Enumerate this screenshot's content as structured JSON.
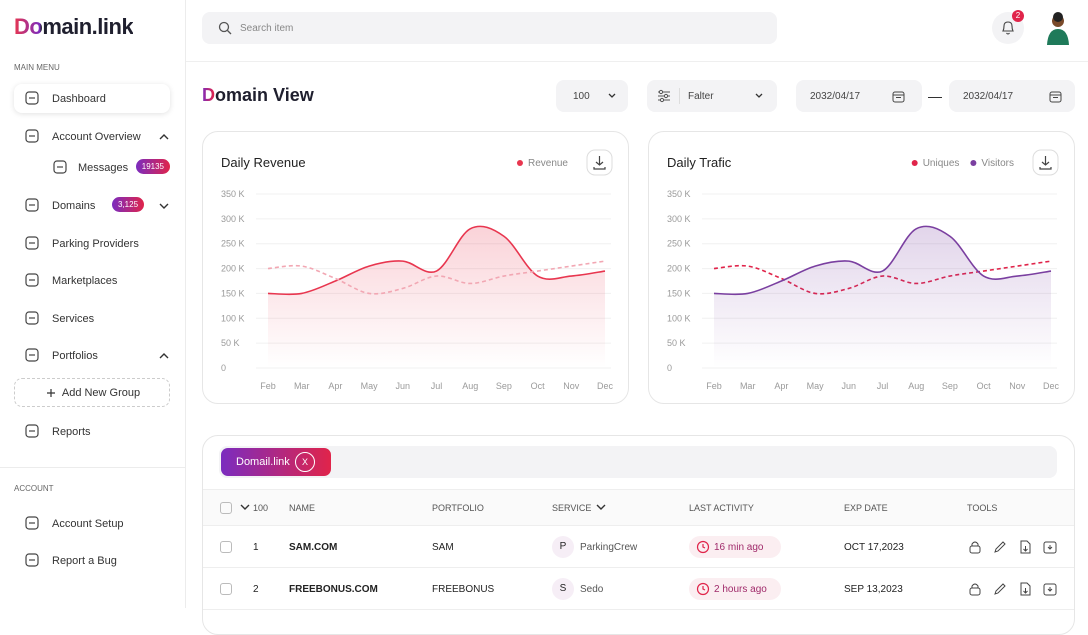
{
  "sidebar": {
    "logo": "Domain.link",
    "main_menu_label": "MAIN MENU",
    "items": [
      {
        "label": "Dashboard"
      },
      {
        "label": "Account Overview"
      },
      {
        "label": "Messages",
        "badge": "19135"
      },
      {
        "label": "Domains",
        "badge": "3,125"
      },
      {
        "label": "Parking Providers"
      },
      {
        "label": "Marketplaces"
      },
      {
        "label": "Services"
      },
      {
        "label": "Portfolios"
      },
      {
        "label": "Add New Group"
      },
      {
        "label": "Reports"
      }
    ],
    "account_label": "ACCOUNT",
    "account_items": [
      {
        "label": "Account Setup"
      },
      {
        "label": "Report a Bug"
      }
    ]
  },
  "header": {
    "search_placeholder": "Search item",
    "notification_count": "2"
  },
  "toolbar": {
    "title": "Domain View",
    "page_size": "100",
    "filter": "Falter",
    "date_from": "2032/04/17",
    "date_separator": "—",
    "date_to": "2032/04/17"
  },
  "chart_data": [
    {
      "type": "line",
      "title": "Daily Revenue",
      "categories": [
        "Feb",
        "Mar",
        "Apr",
        "May",
        "Jun",
        "Jul",
        "Aug",
        "Sep",
        "Oct",
        "Nov",
        "Dec"
      ],
      "series": [
        {
          "name": "Revenue",
          "color": "#e8364f",
          "area": true,
          "values": [
            150000,
            150000,
            175000,
            205000,
            215000,
            195000,
            280000,
            265000,
            185000,
            185000,
            195000
          ]
        },
        {
          "color": "#f2a7b3",
          "dashed": true,
          "values": [
            200000,
            205000,
            180000,
            150000,
            160000,
            185000,
            170000,
            185000,
            195000,
            205000,
            215000
          ]
        }
      ],
      "ylim": [
        0,
        350000
      ],
      "yticks": [
        0,
        {
          "value": 50000,
          "label": "50 K"
        },
        {
          "value": 100000,
          "label": "100 K"
        },
        {
          "value": 150000,
          "label": "150 K"
        },
        {
          "value": 200000,
          "label": "200 K"
        },
        {
          "value": 250000,
          "label": "250 K"
        },
        {
          "value": 300000,
          "label": "300 K"
        },
        {
          "value": 350000,
          "label": "350 K"
        }
      ],
      "grid": true
    },
    {
      "type": "line",
      "title": "Daily Trafic",
      "categories": [
        "Feb",
        "Mar",
        "Apr",
        "May",
        "Jun",
        "Jul",
        "Aug",
        "Sep",
        "Oct",
        "Nov",
        "Dec"
      ],
      "series": [
        {
          "name": "Uniques",
          "color": "#e0244a",
          "dashed": true,
          "values": [
            200000,
            205000,
            180000,
            150000,
            160000,
            185000,
            170000,
            185000,
            195000,
            205000,
            215000
          ]
        },
        {
          "name": "Visitors",
          "color": "#7a3fa0",
          "area": true,
          "values": [
            150000,
            150000,
            175000,
            205000,
            215000,
            195000,
            280000,
            265000,
            185000,
            185000,
            195000
          ]
        }
      ],
      "ylim": [
        0,
        350000
      ],
      "yticks": [
        0,
        {
          "value": 50000,
          "label": "50 K"
        },
        {
          "value": 100000,
          "label": "100 K"
        },
        {
          "value": 150000,
          "label": "150 K"
        },
        {
          "value": 200000,
          "label": "200 K"
        },
        {
          "value": 250000,
          "label": "250 K"
        },
        {
          "value": 300000,
          "label": "300 K"
        },
        {
          "value": 350000,
          "label": "350 K"
        }
      ],
      "grid": true
    }
  ],
  "table": {
    "filter_chip": "Domail.link",
    "chip_close": "X",
    "select_count": "100",
    "columns": [
      "NAME",
      "PORTFOLIO",
      "SERVICE",
      "LAST ACTIVITY",
      "EXP DATE",
      "TOOLS"
    ],
    "rows": [
      {
        "index": "1",
        "name": "SAM.COM",
        "portfolio": "SAM",
        "service_initial": "P",
        "service": "ParkingCrew",
        "last_activity": "16 min ago",
        "exp_date": "OCT 17,2023"
      },
      {
        "index": "2",
        "name": "FREEBONUS.COM",
        "portfolio": "FREEBONUS",
        "service_initial": "S",
        "service": "Sedo",
        "last_activity": "2 hours ago",
        "exp_date": "SEP 13,2023"
      }
    ]
  }
}
